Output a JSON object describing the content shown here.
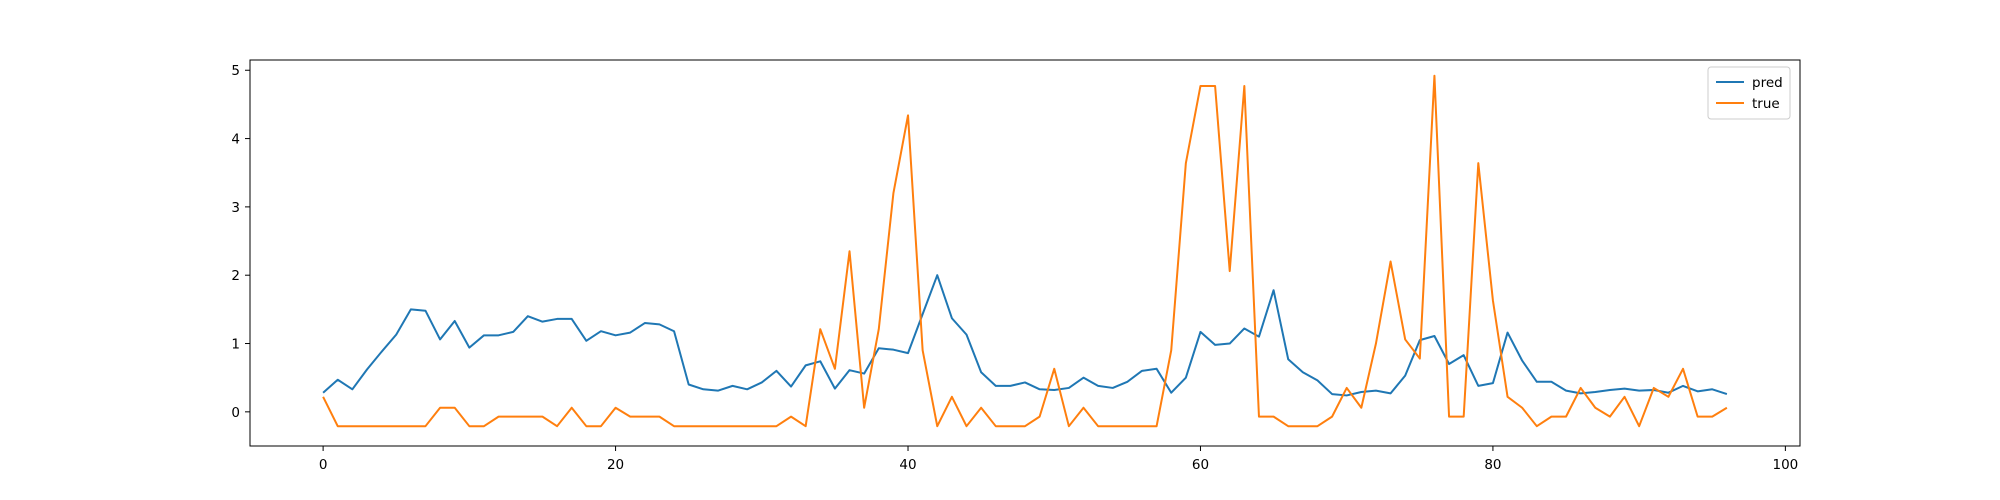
{
  "chart_data": {
    "type": "line",
    "xlim": [
      -5,
      101
    ],
    "ylim": [
      -0.5,
      5.15
    ],
    "xticks": [
      0,
      20,
      40,
      60,
      80,
      100
    ],
    "yticks": [
      0,
      1,
      2,
      3,
      4,
      5
    ],
    "grid": false,
    "legend_position": "top-right",
    "series": [
      {
        "name": "pred",
        "color": "#1f77b4",
        "values": [
          0.28,
          0.47,
          0.33,
          0.62,
          0.88,
          1.13,
          1.5,
          1.48,
          1.06,
          1.33,
          0.94,
          1.12,
          1.12,
          1.17,
          1.4,
          1.32,
          1.36,
          1.36,
          1.04,
          1.18,
          1.12,
          1.16,
          1.3,
          1.28,
          1.18,
          0.4,
          0.33,
          0.31,
          0.38,
          0.33,
          0.43,
          0.6,
          0.37,
          0.68,
          0.74,
          0.34,
          0.61,
          0.56,
          0.93,
          0.91,
          0.86,
          1.43,
          2.0,
          1.37,
          1.13,
          0.58,
          0.38,
          0.38,
          0.43,
          0.33,
          0.32,
          0.35,
          0.5,
          0.38,
          0.35,
          0.44,
          0.6,
          0.63,
          0.28,
          0.5,
          1.17,
          0.98,
          1.0,
          1.22,
          1.1,
          1.78,
          0.77,
          0.58,
          0.46,
          0.26,
          0.24,
          0.29,
          0.31,
          0.27,
          0.53,
          1.05,
          1.11,
          0.7,
          0.83,
          0.38,
          0.42,
          1.16,
          0.75,
          0.44,
          0.44,
          0.31,
          0.27,
          0.29,
          0.32,
          0.34,
          0.31,
          0.32,
          0.28,
          0.38,
          0.3,
          0.33,
          0.26
        ]
      },
      {
        "name": "true",
        "color": "#ff7f0e",
        "values": [
          0.22,
          -0.21,
          -0.21,
          -0.21,
          -0.21,
          -0.21,
          -0.21,
          -0.21,
          0.06,
          0.06,
          -0.21,
          -0.21,
          -0.07,
          -0.07,
          -0.07,
          -0.07,
          -0.21,
          0.06,
          -0.21,
          -0.21,
          0.06,
          -0.07,
          -0.07,
          -0.07,
          -0.21,
          -0.21,
          -0.21,
          -0.21,
          -0.21,
          -0.21,
          -0.21,
          -0.21,
          -0.07,
          -0.21,
          1.21,
          0.63,
          2.35,
          0.06,
          1.21,
          3.2,
          4.34,
          0.9,
          -0.21,
          0.22,
          -0.21,
          0.06,
          -0.21,
          -0.21,
          -0.21,
          -0.07,
          0.63,
          -0.21,
          0.06,
          -0.21,
          -0.21,
          -0.21,
          -0.21,
          -0.21,
          0.9,
          3.64,
          4.77,
          4.77,
          2.06,
          4.77,
          -0.07,
          -0.07,
          -0.21,
          -0.21,
          -0.21,
          -0.07,
          0.35,
          0.06,
          1.0,
          2.2,
          1.06,
          0.78,
          4.92,
          -0.07,
          -0.07,
          3.64,
          1.63,
          0.22,
          0.06,
          -0.21,
          -0.07,
          -0.07,
          0.35,
          0.06,
          -0.07,
          0.22,
          -0.21,
          0.35,
          0.22,
          0.63,
          -0.07,
          -0.07,
          0.06
        ]
      }
    ]
  }
}
